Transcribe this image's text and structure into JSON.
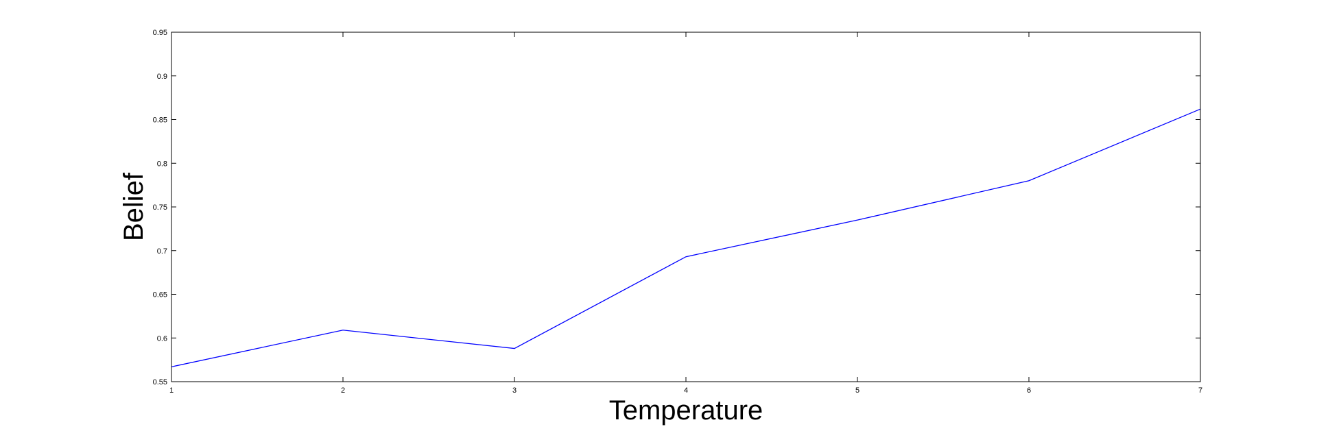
{
  "chart_data": {
    "type": "line",
    "title": "",
    "xlabel": "Temperature",
    "ylabel": "Belief",
    "xlim": [
      1,
      7
    ],
    "ylim": [
      0.55,
      0.95
    ],
    "xticks": [
      1,
      2,
      3,
      4,
      5,
      6,
      7
    ],
    "yticks": [
      0.55,
      0.6,
      0.65,
      0.7,
      0.75,
      0.8,
      0.85,
      0.9,
      0.95
    ],
    "xtick_labels": [
      "1",
      "2",
      "3",
      "4",
      "5",
      "6",
      "7"
    ],
    "ytick_labels": [
      "0.55",
      "0.6",
      "0.65",
      "0.7",
      "0.75",
      "0.8",
      "0.85",
      "0.9",
      "0.95"
    ],
    "grid": false,
    "legend": false,
    "series": [
      {
        "color": "#0000ff",
        "x": [
          1,
          2,
          3,
          4,
          5,
          6,
          7
        ],
        "y": [
          0.567,
          0.609,
          0.588,
          0.693,
          0.735,
          0.78,
          0.862
        ]
      }
    ]
  }
}
